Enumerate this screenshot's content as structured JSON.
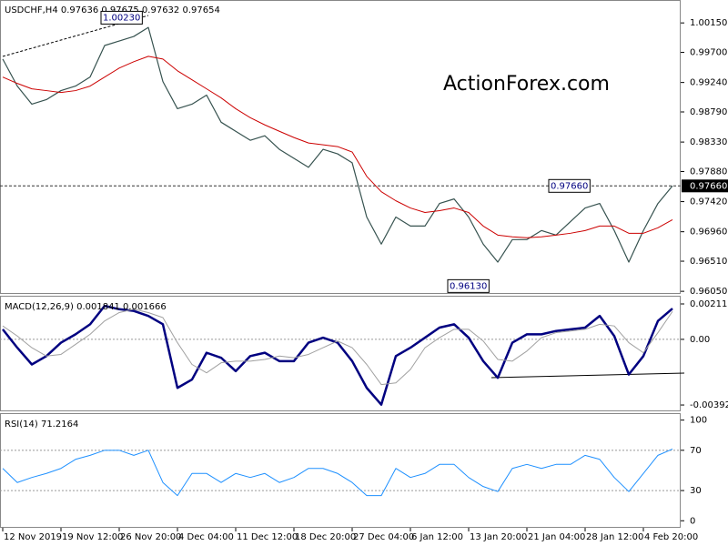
{
  "chart_data": [
    {
      "type": "line",
      "title": "USDCHF,H4 0.97636 0.97675 0.97632 0.97654",
      "watermark": "ActionForex.com",
      "ylim": [
        0.9601,
        1.005
      ],
      "yticks": [
        {
          "value": 1.0015,
          "label": "1.00150"
        },
        {
          "value": 0.997,
          "label": "0.99700"
        },
        {
          "value": 0.9924,
          "label": "0.99240"
        },
        {
          "value": 0.9879,
          "label": "0.98790"
        },
        {
          "value": 0.9833,
          "label": "0.98330"
        },
        {
          "value": 0.9788,
          "label": "0.97880"
        },
        {
          "value": 0.9742,
          "label": "0.97420"
        },
        {
          "value": 0.9696,
          "label": "0.96960"
        },
        {
          "value": 0.9651,
          "label": "0.96510"
        },
        {
          "value": 0.9605,
          "label": "0.96050"
        }
      ],
      "series": [
        {
          "name": "USDCHF",
          "color": "#36524f",
          "values": [
            0.99598,
            0.99185,
            0.98909,
            0.98978,
            0.99116,
            0.99185,
            0.99323,
            0.99805,
            0.99874,
            0.99943,
            1.00081,
            0.99254,
            0.9884,
            0.98909,
            0.99047,
            0.98633,
            0.98495,
            0.98357,
            0.98426,
            0.98219,
            0.98081,
            0.97944,
            0.98219,
            0.9815,
            0.98013,
            0.97185,
            0.96771,
            0.97185,
            0.97047,
            0.97047,
            0.97392,
            0.97461,
            0.97185,
            0.96771,
            0.96496,
            0.9684,
            0.9684,
            0.96978,
            0.96909,
            0.97116,
            0.97323,
            0.97392,
            0.96978,
            0.96496,
            0.96978,
            0.97392,
            0.9766
          ]
        },
        {
          "name": "MA",
          "color": "#cc0000",
          "values": [
            0.99323,
            0.99226,
            0.99143,
            0.99116,
            0.99088,
            0.99116,
            0.99185,
            0.99323,
            0.9946,
            0.99557,
            0.9964,
            0.99598,
            0.99419,
            0.99281,
            0.99143,
            0.99005,
            0.9884,
            0.98702,
            0.98592,
            0.98495,
            0.98399,
            0.98316,
            0.98288,
            0.98261,
            0.98178,
            0.97806,
            0.97571,
            0.97433,
            0.97323,
            0.97254,
            0.97282,
            0.97323,
            0.97254,
            0.97047,
            0.96909,
            0.96882,
            0.96868,
            0.96882,
            0.96909,
            0.96937,
            0.96978,
            0.97047,
            0.97047,
            0.96937,
            0.96937,
            0.9702,
            0.97144
          ]
        }
      ],
      "annotations": [
        {
          "value": 1.0023,
          "label": "1.00230"
        },
        {
          "value": 0.9766,
          "label": "0.97660"
        },
        {
          "value": 0.9613,
          "label": "0.96130"
        }
      ],
      "last_price": {
        "value": 0.9766,
        "label": "0.97660"
      }
    },
    {
      "type": "line",
      "title": "MACD(12,26,9) 0.001841 0.001666",
      "ylim": [
        -0.0043,
        0.00255
      ],
      "yticks": [
        0.002115,
        {
          "value": 0,
          "label": "0.00"
        },
        -0.003922
      ],
      "levels": [
        0
      ],
      "series": [
        {
          "name": "MACD",
          "color": "#000080",
          "values": [
            0.0006,
            -0.0005,
            -0.0015,
            -0.001,
            -0.0002,
            0.0003,
            0.0009,
            0.002,
            0.0018,
            0.0017,
            0.0014,
            0.0009,
            -0.0029,
            -0.0024,
            -0.0008,
            -0.0011,
            -0.0019,
            -0.001,
            -0.0008,
            -0.0013,
            -0.0013,
            -0.0002,
            0.0001,
            -0.0002,
            -0.0013,
            -0.0029,
            -0.0039,
            -0.001,
            -0.0005,
            0.0001,
            0.0007,
            0.0009,
            0.0001,
            -0.0013,
            -0.0023,
            -0.0002,
            0.0003,
            0.0003,
            0.0005,
            0.0006,
            0.0007,
            0.0014,
            0.0002,
            -0.0021,
            -0.001,
            0.0011,
            0.001841
          ]
        },
        {
          "name": "Signal",
          "color": "#a0a0a0",
          "values": [
            0.0008,
            0.0002,
            -0.0005,
            -0.001,
            -0.0009,
            -0.0003,
            0.0003,
            0.0011,
            0.0016,
            0.0018,
            0.0016,
            0.0013,
            -0.0002,
            -0.0015,
            -0.002,
            -0.0014,
            -0.0013,
            -0.0013,
            -0.0012,
            -0.001,
            -0.0011,
            -0.0009,
            -0.0005,
            -0.0001,
            -0.0005,
            -0.0015,
            -0.0027,
            -0.0026,
            -0.0018,
            -0.0005,
            0.0001,
            0.0006,
            0.0006,
            -0.0001,
            -0.0012,
            -0.0013,
            -0.0007,
            0.0001,
            0.0004,
            0.0005,
            0.0006,
            0.0009,
            0.0008,
            -0.0002,
            -0.0008,
            0.0004,
            0.001666
          ]
        }
      ]
    },
    {
      "type": "line",
      "title": "RSI(14) 71.2164",
      "ylim": [
        -7,
        106
      ],
      "yticks": [
        100,
        70,
        30,
        0
      ],
      "levels": [
        70,
        30
      ],
      "categories": [
        "12 Nov 2019",
        null,
        null,
        null,
        "19 Nov 12:00",
        null,
        null,
        null,
        "26 Nov 20:00",
        null,
        null,
        null,
        "4 Dec 04:00",
        null,
        null,
        null,
        "11 Dec 12:00",
        null,
        null,
        null,
        "18 Dec 20:00",
        null,
        null,
        null,
        "27 Dec 04:00",
        null,
        null,
        null,
        "6 Jan 12:00",
        null,
        null,
        null,
        "13 Jan 20:00",
        null,
        null,
        null,
        "21 Jan 04:00",
        null,
        null,
        null,
        "28 Jan 12:00",
        null,
        null,
        null,
        "4 Feb 20:00",
        null,
        null
      ],
      "series": [
        {
          "name": "RSI",
          "color": "#1e90ff",
          "values": [
            52,
            38,
            43,
            47,
            52,
            61,
            65,
            70,
            70,
            65,
            70,
            38,
            25,
            47,
            47,
            38,
            47,
            43,
            47,
            38,
            43,
            52,
            52,
            47,
            38,
            25,
            25,
            52,
            43,
            47,
            56,
            56,
            43,
            34,
            29,
            52,
            56,
            52,
            56,
            56,
            65,
            61,
            43,
            29,
            47,
            65,
            71.2164
          ]
        }
      ]
    }
  ]
}
